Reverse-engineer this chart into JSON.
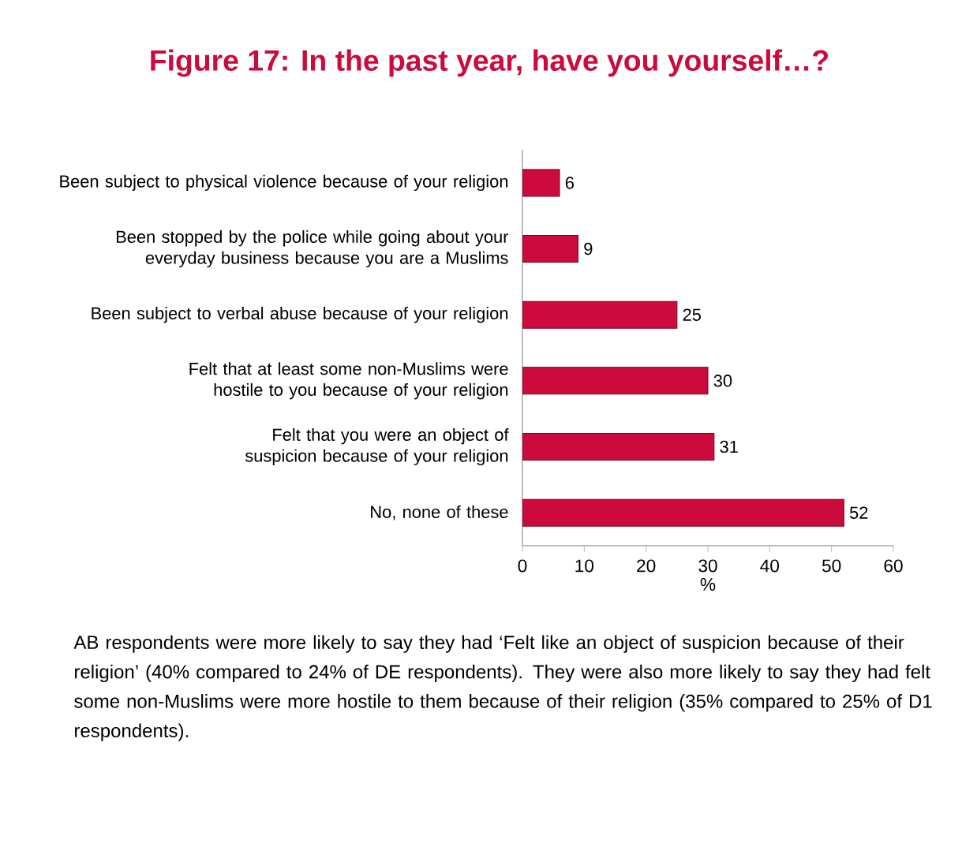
{
  "chart_data": {
    "type": "bar",
    "orientation": "horizontal",
    "title": "Figure 17: In the past year, have you yourself…?",
    "categories": [
      "Been subject to physical violence because of your religion",
      "Been stopped by the police while going about your everyday business because you are a Muslims",
      "Been subject to verbal abuse because of your religion",
      "Felt that at least some non-Muslims were hostile to you because of your religion",
      "Felt that you were an object of suspicion because of your religion",
      "No, none of these"
    ],
    "values": [
      6,
      9,
      25,
      30,
      31,
      52
    ],
    "color": "#cc0a3c",
    "data_labels": true,
    "xlim": [
      0,
      60
    ],
    "xticks": [
      0,
      10,
      20,
      30,
      40,
      50,
      60
    ],
    "xlabel": "%",
    "annotations": [
      "AB respondents were more likely to say they had ‘Felt like an object of suspicion because of their religion’ (40% compared to 24% of DE respondents). They were also more likely to say they had felt some non-Muslims were more hostile to them because of their religion (35% compared to 25% of D1 respondents)."
    ]
  }
}
